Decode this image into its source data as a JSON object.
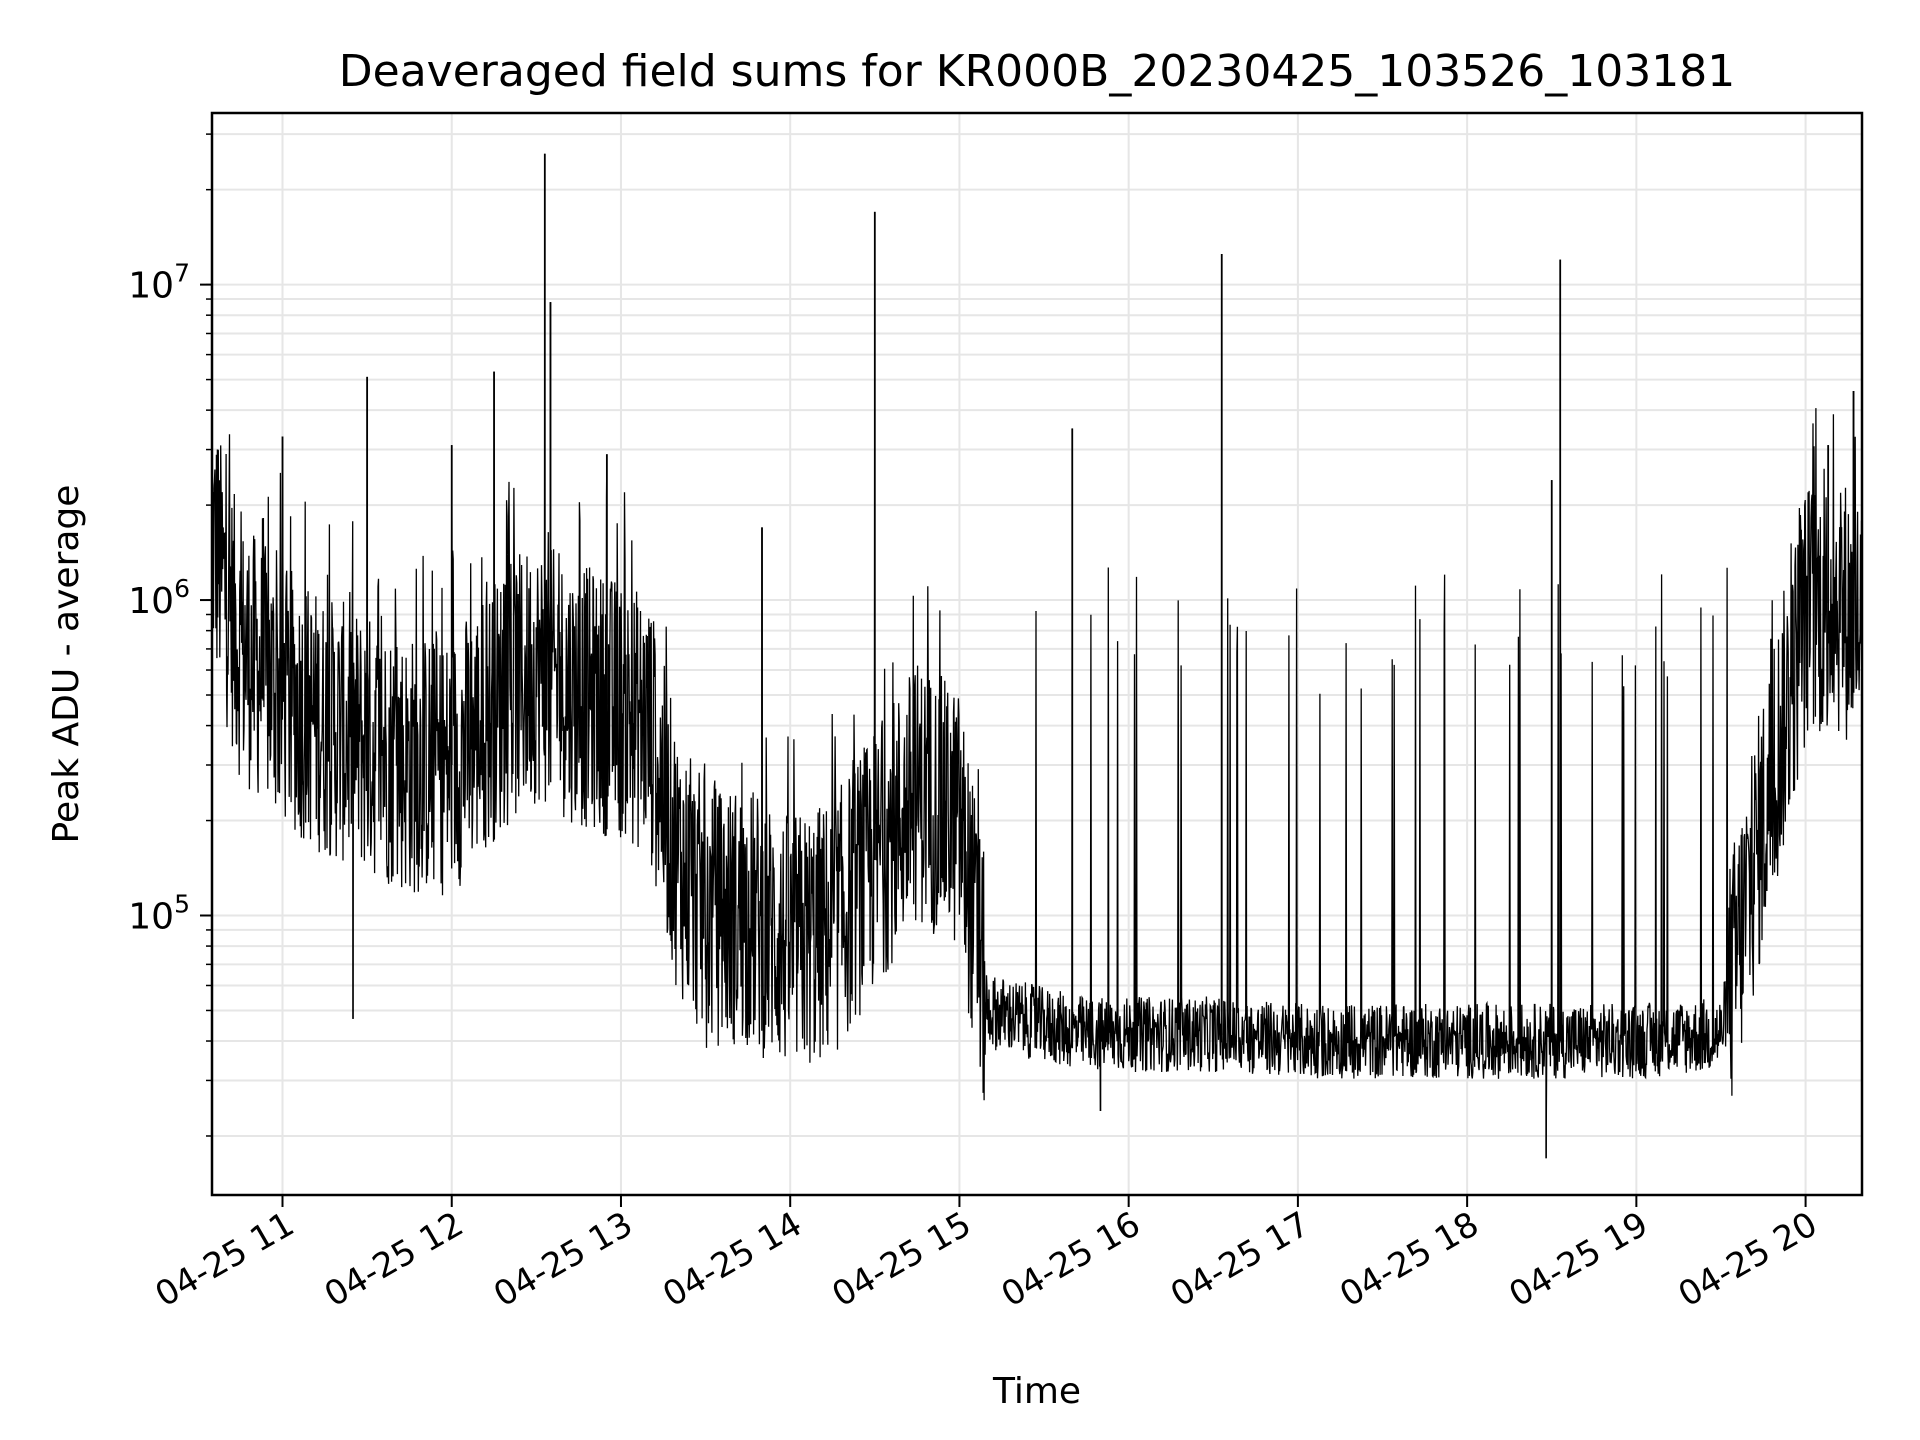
{
  "chart_data": {
    "type": "line",
    "title": "Deaveraged field sums for KR000B_20230425_103526_103181",
    "xlabel": "Time",
    "ylabel": "Peak ADU - average",
    "y_scale": "log",
    "ylim": [
      13000,
      35000000
    ],
    "xlim": [
      "04-25 10:35",
      "04-25 20:20"
    ],
    "grid": true,
    "x_ticks": [
      {
        "value": "04-25 11:00",
        "label": "04-25 11"
      },
      {
        "value": "04-25 12:00",
        "label": "04-25 12"
      },
      {
        "value": "04-25 13:00",
        "label": "04-25 13"
      },
      {
        "value": "04-25 14:00",
        "label": "04-25 14"
      },
      {
        "value": "04-25 15:00",
        "label": "04-25 15"
      },
      {
        "value": "04-25 16:00",
        "label": "04-25 16"
      },
      {
        "value": "04-25 17:00",
        "label": "04-25 17"
      },
      {
        "value": "04-25 18:00",
        "label": "04-25 18"
      },
      {
        "value": "04-25 19:00",
        "label": "04-25 19"
      },
      {
        "value": "04-25 20:00",
        "label": "04-25 20"
      }
    ],
    "y_ticks": [
      {
        "value": 100000,
        "base": "10",
        "exp": "5"
      },
      {
        "value": 1000000,
        "base": "10",
        "exp": "6"
      },
      {
        "value": 10000000,
        "base": "10",
        "exp": "7"
      }
    ],
    "series": [
      {
        "color": "#000000",
        "x": [
          "04-25 10:35",
          "04-25 10:45",
          "04-25 11:00",
          "04-25 11:15",
          "04-25 11:30",
          "04-25 11:45",
          "04-25 12:00",
          "04-25 12:15",
          "04-25 12:30",
          "04-25 12:45",
          "04-25 13:00",
          "04-25 13:10",
          "04-25 13:20",
          "04-25 13:30",
          "04-25 13:45",
          "04-25 14:00",
          "04-25 14:15",
          "04-25 14:30",
          "04-25 14:45",
          "04-25 15:00",
          "04-25 15:10",
          "04-25 15:30",
          "04-25 15:45",
          "04-25 16:00",
          "04-25 16:30",
          "04-25 17:00",
          "04-25 17:30",
          "04-25 18:00",
          "04-25 18:30",
          "04-25 19:00",
          "04-25 19:30",
          "04-25 19:45",
          "04-25 20:00",
          "04-25 20:10",
          "04-25 20:20"
        ],
        "values": [
          1600000,
          700000,
          500000,
          400000,
          350000,
          300000,
          300000,
          450000,
          600000,
          500000,
          450000,
          400000,
          150000,
          100000,
          100000,
          80000,
          90000,
          150000,
          250000,
          200000,
          50000,
          45000,
          42000,
          42000,
          42000,
          40000,
          40000,
          40000,
          40000,
          40000,
          42000,
          200000,
          900000,
          1000000,
          850000
        ],
        "spikes": [
          {
            "x": "04-25 10:37",
            "value": 3000000
          },
          {
            "x": "04-25 11:00",
            "value": 3300000
          },
          {
            "x": "04-25 11:30",
            "value": 5100000
          },
          {
            "x": "04-25 12:00",
            "value": 3100000
          },
          {
            "x": "04-25 12:15",
            "value": 5300000
          },
          {
            "x": "04-25 12:33",
            "value": 26000000
          },
          {
            "x": "04-25 12:35",
            "value": 8800000
          },
          {
            "x": "04-25 12:55",
            "value": 2900000
          },
          {
            "x": "04-25 13:50",
            "value": 1700000
          },
          {
            "x": "04-25 14:30",
            "value": 17000000
          },
          {
            "x": "04-25 15:40",
            "value": 3500000
          },
          {
            "x": "04-25 16:33",
            "value": 12500000
          },
          {
            "x": "04-25 18:30",
            "value": 2400000
          },
          {
            "x": "04-25 18:33",
            "value": 12000000
          },
          {
            "x": "04-25 20:08",
            "value": 3100000
          },
          {
            "x": "04-25 20:17",
            "value": 4600000
          }
        ],
        "dips": [
          {
            "x": "04-25 11:25",
            "value": 47000
          },
          {
            "x": "04-25 15:50",
            "value": 24000
          },
          {
            "x": "04-25 18:28",
            "value": 17000
          }
        ]
      }
    ]
  }
}
